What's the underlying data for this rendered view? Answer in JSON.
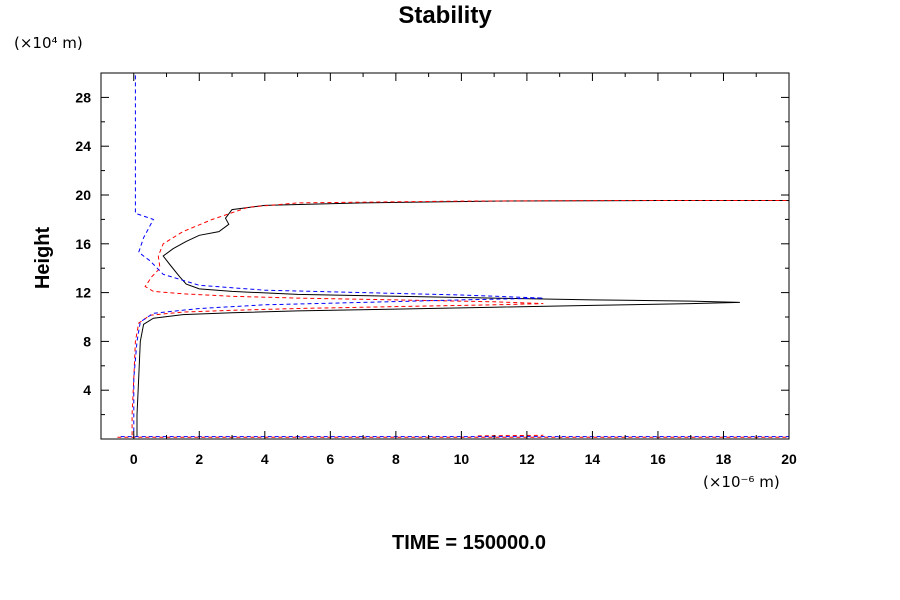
{
  "chart_data": {
    "type": "line",
    "title": "Stability",
    "ylabel": "Height",
    "y_unit_label": "(×10⁴ m)",
    "x_unit_label": "(×10⁻⁶ m)",
    "xlim": [
      -1,
      20
    ],
    "ylim": [
      0,
      30
    ],
    "x_ticks": [
      0,
      2,
      4,
      6,
      8,
      10,
      12,
      14,
      16,
      18,
      20
    ],
    "y_ticks": [
      4,
      8,
      12,
      16,
      20,
      24,
      28
    ],
    "grid": false,
    "series": [
      {
        "color": "#000000",
        "dash": "solid",
        "segments": [
          [
            [
              0.1,
              0.2
            ],
            [
              0.1,
              2.0
            ],
            [
              0.15,
              5.0
            ],
            [
              0.2,
              8.0
            ],
            [
              0.3,
              9.4
            ],
            [
              0.6,
              9.9
            ],
            [
              1.5,
              10.2
            ],
            [
              3.0,
              10.35
            ],
            [
              5.0,
              10.5
            ],
            [
              8.0,
              10.65
            ],
            [
              11.0,
              10.8
            ],
            [
              14.0,
              10.95
            ],
            [
              17.0,
              11.1
            ],
            [
              18.5,
              11.2
            ],
            [
              17.0,
              11.3
            ],
            [
              14.0,
              11.4
            ],
            [
              11.0,
              11.55
            ],
            [
              8.0,
              11.7
            ],
            [
              5.0,
              11.85
            ],
            [
              3.0,
              12.1
            ],
            [
              2.0,
              12.3
            ],
            [
              1.6,
              12.7
            ],
            [
              1.4,
              13.3
            ],
            [
              1.1,
              14.3
            ],
            [
              0.9,
              15.0
            ],
            [
              1.2,
              15.6
            ],
            [
              1.6,
              16.2
            ],
            [
              2.0,
              16.7
            ],
            [
              2.6,
              17.0
            ],
            [
              2.9,
              17.6
            ],
            [
              2.8,
              18.1
            ],
            [
              3.0,
              18.8
            ],
            [
              4.0,
              19.15
            ],
            [
              7.0,
              19.35
            ],
            [
              11.0,
              19.5
            ],
            [
              16.0,
              19.55
            ],
            [
              20.0,
              19.55
            ]
          ]
        ]
      },
      {
        "color": "#ff0000",
        "dash": "dashed",
        "segments": [
          [
            [
              -0.5,
              0.15
            ],
            [
              20.0,
              0.15
            ]
          ],
          [
            [
              -0.05,
              0.3
            ],
            [
              -0.05,
              2.0
            ],
            [
              0.0,
              5.0
            ],
            [
              0.05,
              8.0
            ],
            [
              0.15,
              9.5
            ],
            [
              0.5,
              10.15
            ],
            [
              1.5,
              10.4
            ],
            [
              3.0,
              10.55
            ],
            [
              5.0,
              10.7
            ],
            [
              8.0,
              10.85
            ],
            [
              11.0,
              11.0
            ],
            [
              12.5,
              11.1
            ],
            [
              11.0,
              11.25
            ],
            [
              8.0,
              11.4
            ],
            [
              5.0,
              11.55
            ],
            [
              3.0,
              11.7
            ],
            [
              1.5,
              11.9
            ],
            [
              0.6,
              12.1
            ],
            [
              0.35,
              12.5
            ],
            [
              0.55,
              13.3
            ],
            [
              0.8,
              14.0
            ],
            [
              0.75,
              15.0
            ],
            [
              0.9,
              16.0
            ],
            [
              1.5,
              17.0
            ],
            [
              2.4,
              18.0
            ],
            [
              3.5,
              19.0
            ],
            [
              5.0,
              19.35
            ],
            [
              10.0,
              19.5
            ],
            [
              15.0,
              19.55
            ],
            [
              20.0,
              19.55
            ]
          ],
          [
            [
              10.5,
              0.25
            ],
            [
              12.5,
              0.3
            ]
          ]
        ]
      },
      {
        "color": "#0000ff",
        "dash": "dashed",
        "segments": [
          [
            [
              0.05,
              29.8
            ],
            [
              0.05,
              18.5
            ],
            [
              0.6,
              18.0
            ],
            [
              0.3,
              16.5
            ],
            [
              0.15,
              15.3
            ],
            [
              0.5,
              14.6
            ],
            [
              0.9,
              13.5
            ],
            [
              2.0,
              12.6
            ],
            [
              4.0,
              12.2
            ],
            [
              7.0,
              12.0
            ],
            [
              10.0,
              11.8
            ],
            [
              12.5,
              11.55
            ],
            [
              10.0,
              11.4
            ],
            [
              7.0,
              11.2
            ],
            [
              4.0,
              11.0
            ],
            [
              2.0,
              10.7
            ],
            [
              0.6,
              10.3
            ],
            [
              0.2,
              9.6
            ],
            [
              0.1,
              8.0
            ],
            [
              0.0,
              5.0
            ],
            [
              0.0,
              2.0
            ],
            [
              0.0,
              0.3
            ]
          ],
          [
            [
              -0.4,
              0.2
            ],
            [
              20.0,
              0.2
            ]
          ]
        ]
      }
    ],
    "footer": "TIME = 150000.0"
  }
}
